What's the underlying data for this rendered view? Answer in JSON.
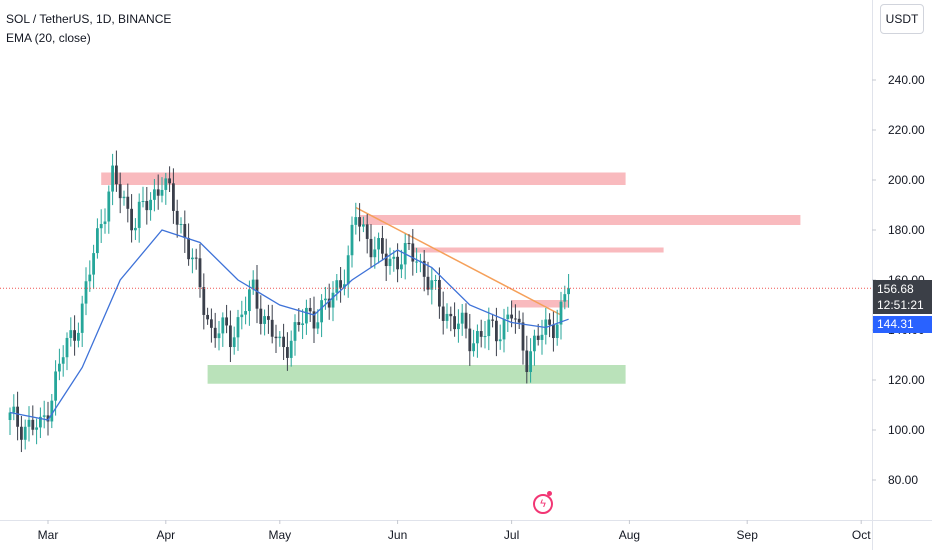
{
  "legend": {
    "symbol_line": "SOL / TetherUS, 1D, BINANCE",
    "indicator_line": "EMA (20, close)"
  },
  "currency_button": "USDT",
  "price_tags": {
    "last_price": "156.68",
    "countdown": "12:51:21",
    "ema_value": "144.31"
  },
  "colors": {
    "up": "#26a69a",
    "down": "#3a3f4b",
    "ema": "#3e72d8",
    "resistance_zone": "#f7a9ae",
    "support_zone": "#a9dba9",
    "trendline": "#f5a05a",
    "last_price_line": "#ef5350"
  },
  "chart_data": {
    "type": "candlestick",
    "title": "SOL / TetherUS, 1D, BINANCE",
    "indicator": "EMA (20, close)",
    "y_axis": {
      "ticks": [
        80,
        100,
        120,
        140,
        160,
        180,
        200,
        220,
        240
      ],
      "tick_labels": [
        "80.00",
        "100.00",
        "120.00",
        "140.00",
        "160.00",
        "180.00",
        "200.00",
        "220.00",
        "240.00"
      ],
      "range": [
        70,
        250
      ]
    },
    "x_axis": {
      "tick_labels": [
        "Mar",
        "Apr",
        "May",
        "Jun",
        "Jul",
        "Aug",
        "Sep",
        "Oct"
      ]
    },
    "last_price": 156.68,
    "ema_last": 144.31,
    "price_path_approx": [
      {
        "date": "2024-02-20",
        "close": 104
      },
      {
        "date": "2024-02-28",
        "close": 100
      },
      {
        "date": "2024-03-05",
        "close": 130
      },
      {
        "date": "2024-03-10",
        "close": 148
      },
      {
        "date": "2024-03-15",
        "close": 185
      },
      {
        "date": "2024-03-18",
        "close": 200
      },
      {
        "date": "2024-03-24",
        "close": 183
      },
      {
        "date": "2024-03-31",
        "close": 200
      },
      {
        "date": "2024-04-06",
        "close": 178
      },
      {
        "date": "2024-04-13",
        "close": 140
      },
      {
        "date": "2024-04-18",
        "close": 138
      },
      {
        "date": "2024-04-24",
        "close": 155
      },
      {
        "date": "2024-05-01",
        "close": 132
      },
      {
        "date": "2024-05-08",
        "close": 145
      },
      {
        "date": "2024-05-14",
        "close": 150
      },
      {
        "date": "2024-05-19",
        "close": 168
      },
      {
        "date": "2024-05-21",
        "close": 185
      },
      {
        "date": "2024-05-28",
        "close": 168
      },
      {
        "date": "2024-06-06",
        "close": 170
      },
      {
        "date": "2024-06-12",
        "close": 150
      },
      {
        "date": "2024-06-20",
        "close": 137
      },
      {
        "date": "2024-06-27",
        "close": 140
      },
      {
        "date": "2024-07-01",
        "close": 146
      },
      {
        "date": "2024-07-05",
        "close": 130
      },
      {
        "date": "2024-07-10",
        "close": 140
      },
      {
        "date": "2024-07-14",
        "close": 147
      },
      {
        "date": "2024-07-16",
        "close": 156.68
      }
    ],
    "ema_path_approx": [
      {
        "date": "2024-02-20",
        "value": 107
      },
      {
        "date": "2024-03-01",
        "value": 104
      },
      {
        "date": "2024-03-10",
        "value": 125
      },
      {
        "date": "2024-03-20",
        "value": 160
      },
      {
        "date": "2024-03-31",
        "value": 180
      },
      {
        "date": "2024-04-10",
        "value": 175
      },
      {
        "date": "2024-04-20",
        "value": 160
      },
      {
        "date": "2024-05-01",
        "value": 150
      },
      {
        "date": "2024-05-10",
        "value": 146
      },
      {
        "date": "2024-05-20",
        "value": 160
      },
      {
        "date": "2024-06-01",
        "value": 172
      },
      {
        "date": "2024-06-10",
        "value": 165
      },
      {
        "date": "2024-06-20",
        "value": 150
      },
      {
        "date": "2024-07-01",
        "value": 143
      },
      {
        "date": "2024-07-10",
        "value": 141
      },
      {
        "date": "2024-07-16",
        "value": 144.31
      }
    ],
    "zones": [
      {
        "kind": "resistance",
        "from": "2024-03-15",
        "to": "2024-07-31",
        "low": 198,
        "high": 203
      },
      {
        "kind": "resistance",
        "from": "2024-05-22",
        "to": "2024-09-15",
        "low": 182,
        "high": 186
      },
      {
        "kind": "resistance",
        "from": "2024-06-05",
        "to": "2024-08-10",
        "low": 171,
        "high": 173
      },
      {
        "kind": "resistance",
        "from": "2024-07-01",
        "to": "2024-07-16",
        "low": 149,
        "high": 152
      },
      {
        "kind": "support",
        "from": "2024-04-12",
        "to": "2024-07-31",
        "low": 118.5,
        "high": 126
      }
    ],
    "trendline": {
      "start": {
        "date": "2024-05-21",
        "value": 189
      },
      "end": {
        "date": "2024-07-14",
        "value": 146
      }
    }
  }
}
